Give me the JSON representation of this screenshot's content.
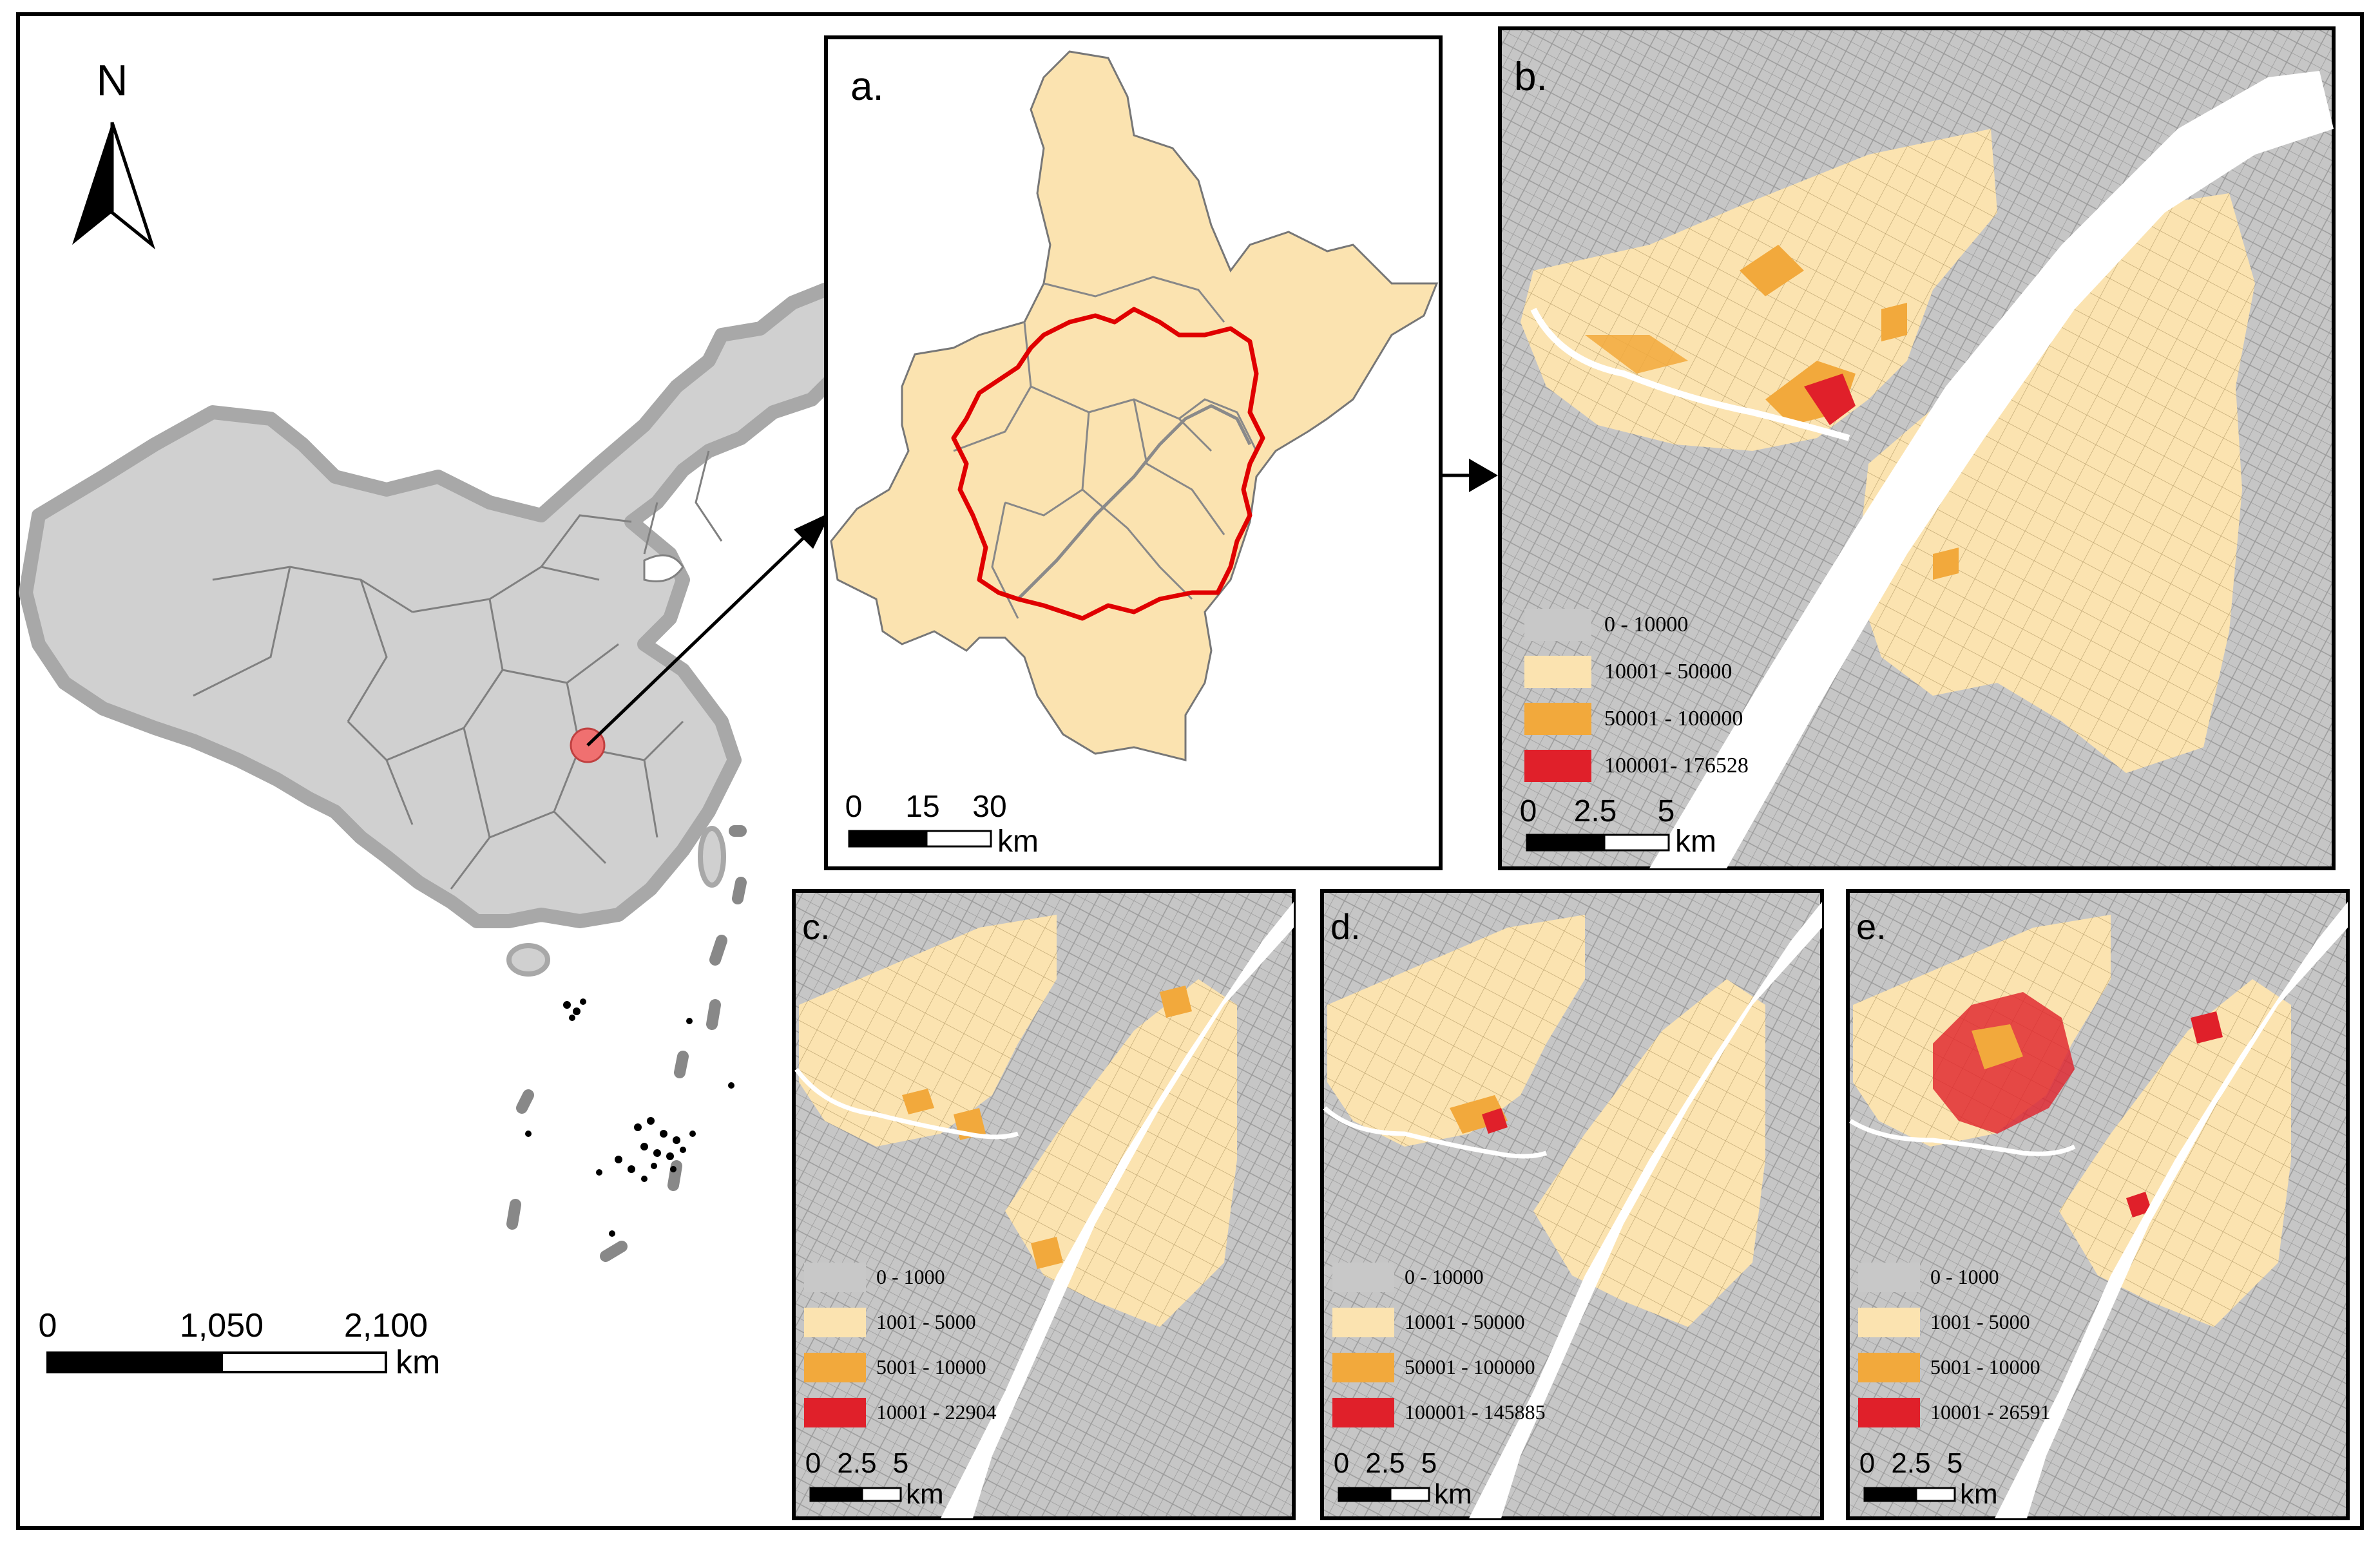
{
  "north": {
    "label": "N"
  },
  "overview": {
    "scale_labels": [
      "0",
      "1,050",
      "2,100"
    ],
    "scale_unit": "km"
  },
  "panels": {
    "a": {
      "label": "a.",
      "scale_labels": [
        "0",
        "15",
        "30"
      ],
      "scale_unit": "km"
    },
    "b": {
      "label": "b.",
      "scale_labels": [
        "0",
        "2.5",
        "5"
      ],
      "scale_unit": "km",
      "legend": [
        "0 - 10000",
        "10001 - 50000",
        "50001 - 100000",
        "100001- 176528"
      ]
    },
    "c": {
      "label": "c.",
      "scale_labels": [
        "0",
        "2.5",
        "5"
      ],
      "scale_unit": "km",
      "legend": [
        "0 - 1000",
        "1001 - 5000",
        "5001 - 10000",
        "10001 - 22904"
      ]
    },
    "d": {
      "label": "d.",
      "scale_labels": [
        "0",
        "2.5",
        "5"
      ],
      "scale_unit": "km",
      "legend": [
        "0 - 10000",
        "10001 - 50000",
        "50001 - 100000",
        "100001 - 145885"
      ]
    },
    "e": {
      "label": "e.",
      "scale_labels": [
        "0",
        "2.5",
        "5"
      ],
      "scale_unit": "km",
      "legend": [
        "0 - 1000",
        "1001 - 5000",
        "5001 - 10000",
        "10001 - 26591"
      ]
    }
  },
  "colors": {
    "class1": "#c8c8c8",
    "class2": "#fbe3b0",
    "class3": "#f2a93c",
    "class4": "#e0202a",
    "boundary": "#e00000",
    "river": "#ffffff",
    "province_fill": "#d0d0d0",
    "province_halo": "#a8a8a8"
  }
}
